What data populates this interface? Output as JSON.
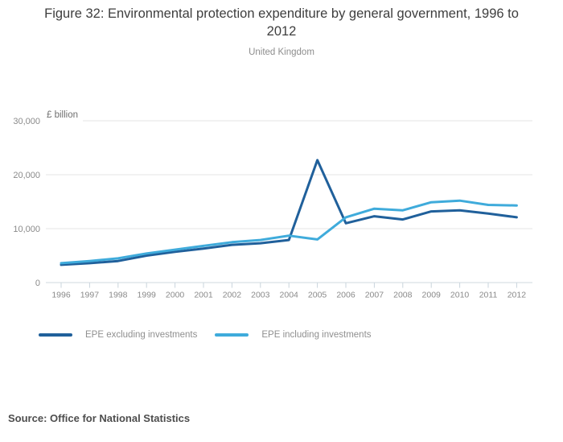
{
  "chart_data": {
    "type": "line",
    "title": "Figure 32: Environmental protection expenditure by general government, 1996 to 2012",
    "subtitle": "United Kingdom",
    "unit_label": "£ billion",
    "x": [
      1996,
      1997,
      1998,
      1999,
      2000,
      2001,
      2002,
      2003,
      2004,
      2005,
      2006,
      2007,
      2008,
      2009,
      2010,
      2011,
      2012
    ],
    "series": [
      {
        "name": "EPE excluding investments",
        "color": "#20609b",
        "values": [
          3300,
          3600,
          4000,
          5000,
          5700,
          6300,
          7000,
          7300,
          7900,
          22700,
          11000,
          12300,
          11700,
          13200,
          13400,
          12800,
          12100
        ]
      },
      {
        "name": "EPE including investments",
        "color": "#3fabdb",
        "values": [
          3600,
          4000,
          4500,
          5400,
          6100,
          6800,
          7500,
          7900,
          8700,
          8000,
          12100,
          13700,
          13400,
          14900,
          15200,
          14400,
          14300
        ]
      }
    ],
    "ylim": [
      0,
      30000
    ],
    "y_tick_values": [
      0,
      10000,
      20000,
      30000
    ],
    "y_tick_labels": [
      "0",
      "10,000",
      "20,000",
      "30,000"
    ],
    "grid": true,
    "legend_position": "bottom",
    "colors": {
      "gridline": "#e4e4e4",
      "axis_line": "#cfd9df",
      "tick": "#c9d4dc",
      "axis_text": "#8a8a8a",
      "unit_text": "#6f6f6f"
    }
  },
  "footer": {
    "source": "Source: Office for National Statistics"
  }
}
